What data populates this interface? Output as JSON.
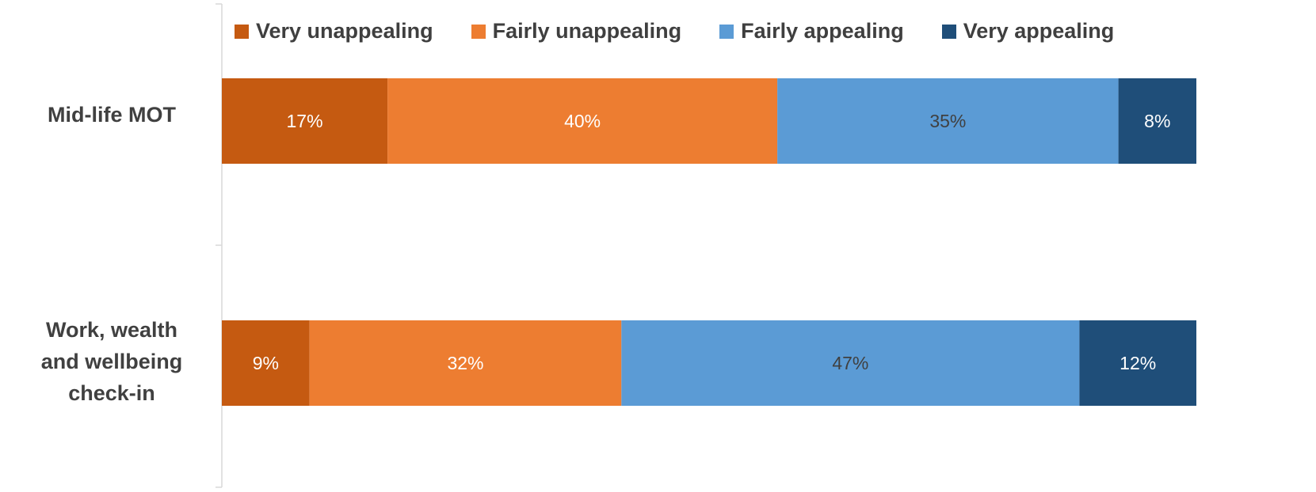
{
  "chart_data": {
    "type": "bar",
    "orientation": "horizontal",
    "stacked": true,
    "title": "",
    "xlabel": "",
    "ylabel": "",
    "xlim": [
      0,
      100
    ],
    "grid": false,
    "legend_position": "top",
    "categories": [
      "Mid-life MOT",
      "Work, wealth and wellbeing check-in"
    ],
    "category_label_lines": [
      [
        "Mid-life MOT"
      ],
      [
        "Work, wealth",
        "and wellbeing",
        "check-in"
      ]
    ],
    "series": [
      {
        "name": "Very unappealing",
        "color": "#C55A11",
        "label_color": "#ffffff",
        "values": [
          17,
          9
        ],
        "labels": [
          "17%",
          "9%"
        ]
      },
      {
        "name": "Fairly unappealing",
        "color": "#ED7D31",
        "label_color": "#ffffff",
        "values": [
          40,
          32
        ],
        "labels": [
          "40%",
          "32%"
        ]
      },
      {
        "name": "Fairly appealing",
        "color": "#5B9BD5",
        "label_color": "#404040",
        "values": [
          35,
          47
        ],
        "labels": [
          "35%",
          "47%"
        ]
      },
      {
        "name": "Very appealing",
        "color": "#1F4E79",
        "label_color": "#ffffff",
        "values": [
          8,
          12
        ],
        "labels": [
          "8%",
          "12%"
        ]
      }
    ]
  }
}
